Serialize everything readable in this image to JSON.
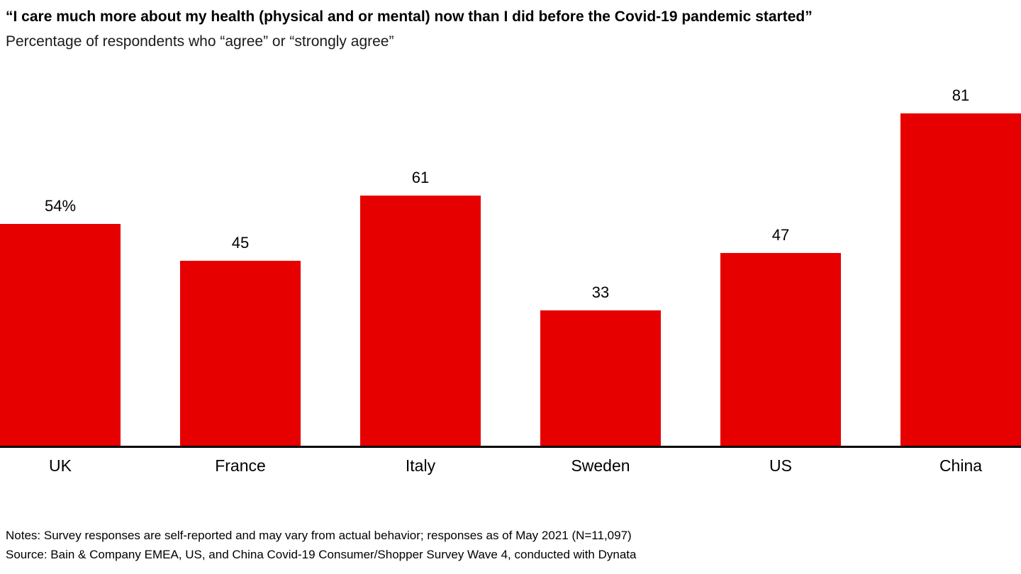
{
  "header": {
    "title": "“I care much more about my health (physical and or mental) now than I did before the Covid-19 pandemic started”",
    "subtitle": "Percentage of respondents who “agree” or “strongly agree”"
  },
  "chart_data": {
    "type": "bar",
    "title": "“I care much more about my health (physical and or mental) now than I did before the Covid-19 pandemic started”",
    "subtitle": "Percentage of respondents who “agree” or “strongly agree”",
    "categories": [
      "UK",
      "France",
      "Italy",
      "Sweden",
      "US",
      "China"
    ],
    "values": [
      54,
      45,
      61,
      33,
      47,
      81
    ],
    "value_labels": [
      "54%",
      "45",
      "61",
      "33",
      "47",
      "81"
    ],
    "xlabel": "",
    "ylabel": "Percentage of respondents who agree or strongly agree",
    "ylim": [
      0,
      100
    ],
    "grid": false,
    "legend": "none",
    "bar_color": "#e60000"
  },
  "footer": {
    "notes": "Notes: Survey responses are self-reported and may vary from actual behavior; responses as of May 2021 (N=11,097)",
    "source": "Source: Bain & Company EMEA, US, and China Covid-19 Consumer/Shopper Survey Wave 4, conducted with Dynata"
  }
}
